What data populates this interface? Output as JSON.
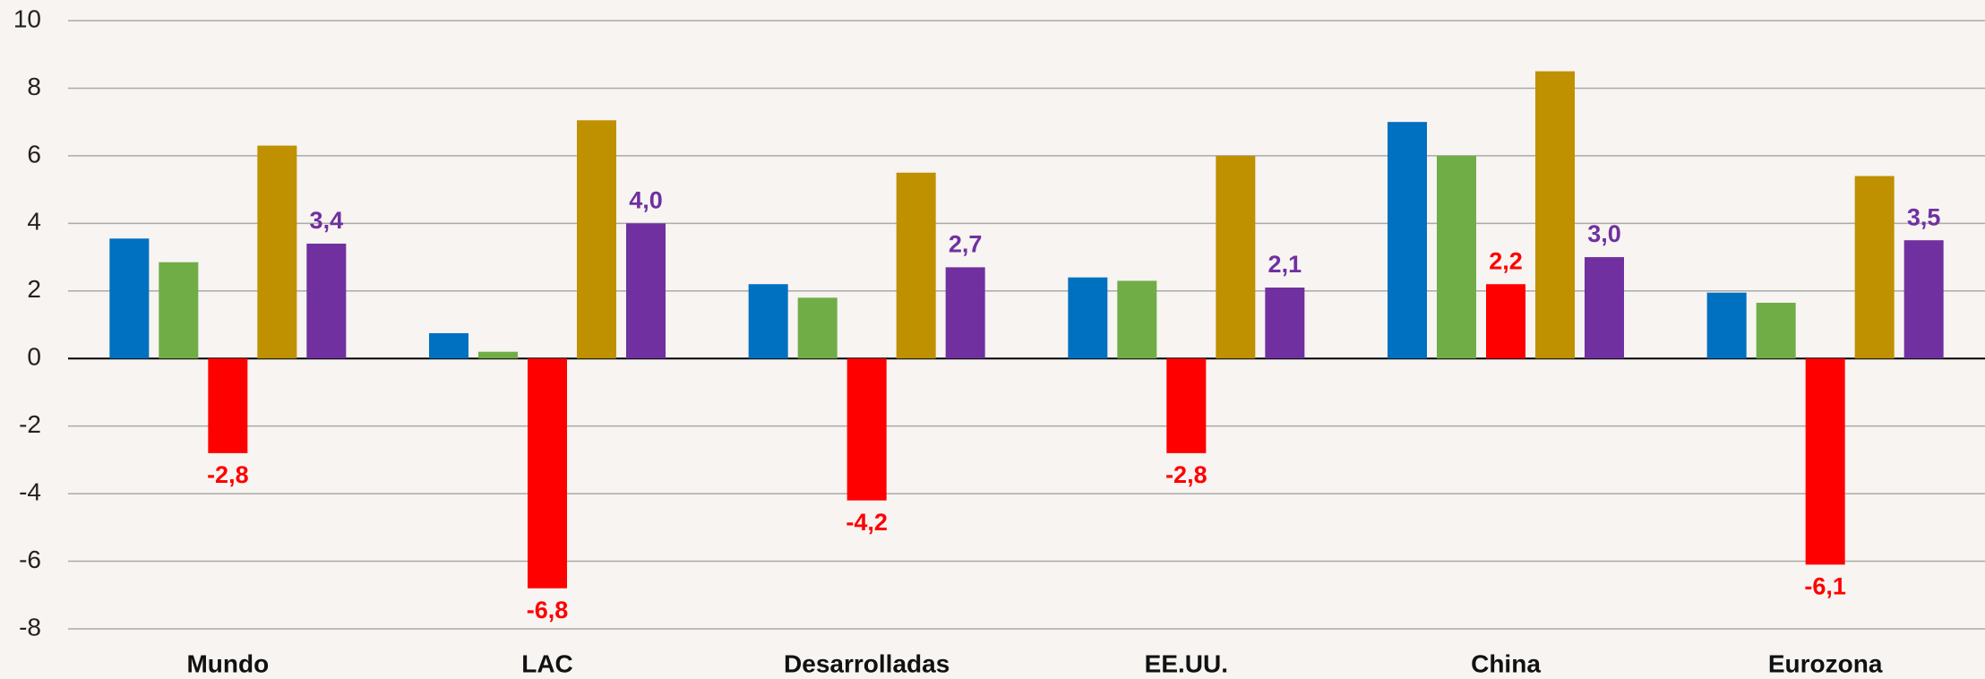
{
  "chart_data": {
    "type": "bar",
    "categories": [
      "Mundo",
      "LAC",
      "Desarrolladas",
      "EE.UU.",
      "China",
      "Eurozona"
    ],
    "series": [
      {
        "color": "#0070c0",
        "values": [
          3.55,
          0.75,
          2.2,
          2.4,
          7.0,
          1.95
        ]
      },
      {
        "color": "#70ad47",
        "values": [
          2.85,
          0.2,
          1.8,
          2.3,
          6.0,
          1.65
        ]
      },
      {
        "color": "#ff0000",
        "values": [
          -2.8,
          -6.8,
          -4.2,
          -2.8,
          2.2,
          -6.1
        ],
        "value_labels": [
          "-2,8",
          "-6,8",
          "-4,2",
          "-2,8",
          "2,2",
          "-6,1"
        ]
      },
      {
        "color": "#bf9000",
        "values": [
          6.3,
          7.05,
          5.5,
          6.0,
          8.5,
          5.4
        ]
      },
      {
        "color": "#7030a0",
        "values": [
          3.4,
          4.0,
          2.7,
          2.1,
          3.0,
          3.5
        ],
        "value_labels": [
          "3,4",
          "4,0",
          "2,7",
          "2,1",
          "3,0",
          "3,5"
        ]
      }
    ],
    "ylim": [
      -8,
      10
    ],
    "yticks": [
      -8,
      -6,
      -4,
      -2,
      0,
      2,
      4,
      6,
      8,
      10
    ],
    "grid": true
  }
}
